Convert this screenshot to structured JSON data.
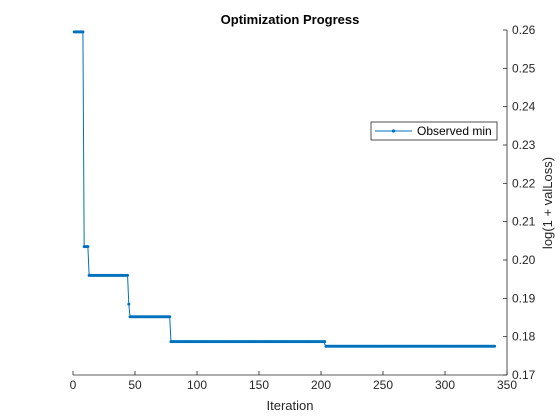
{
  "chart_data": {
    "type": "line",
    "title": "Optimization Progress",
    "xlabel": "Iteration",
    "ylabel": "log(1 + valLoss)",
    "xlim": [
      0,
      350
    ],
    "ylim": [
      0.17,
      0.26
    ],
    "xticks": [
      0,
      50,
      100,
      150,
      200,
      250,
      300,
      350
    ],
    "yticks": [
      0.17,
      0.18,
      0.19,
      0.2,
      0.21,
      0.22,
      0.23,
      0.24,
      0.25,
      0.26
    ],
    "y_axis_side": "right",
    "grid": false,
    "legend_position": "upper-right",
    "series": [
      {
        "name": "Observed min",
        "color": "#0072BD",
        "marker": "dot",
        "points": [
          [
            1,
            0.2595
          ],
          [
            8,
            0.2595
          ],
          [
            9,
            0.2035
          ],
          [
            12,
            0.2035
          ],
          [
            13,
            0.196
          ],
          [
            44,
            0.196
          ],
          [
            45,
            0.1885
          ],
          [
            46,
            0.1852
          ],
          [
            78,
            0.1852
          ],
          [
            79,
            0.1787
          ],
          [
            202,
            0.1787
          ],
          [
            204,
            0.1775
          ],
          [
            340,
            0.1775
          ]
        ]
      }
    ]
  }
}
